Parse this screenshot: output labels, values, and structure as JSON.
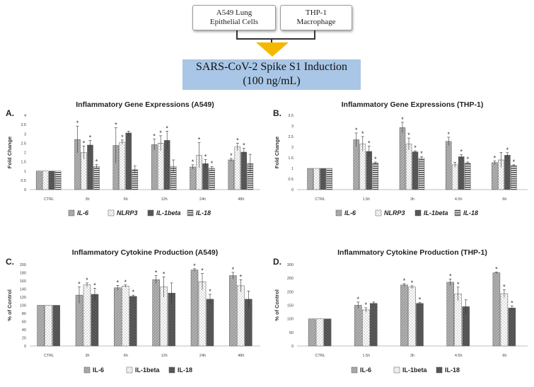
{
  "header": {
    "cell_a549": [
      "A549 Lung",
      "Epithelial Cells"
    ],
    "cell_thp1": [
      "THP-1",
      "Macrophage"
    ],
    "banner_line1": "SARS-CoV-2 Spike S1 Induction",
    "banner_line2": "(100 ng/mL)",
    "arrow_color": "#f5b800"
  },
  "chart_data": [
    {
      "panel": "A.",
      "type": "bar",
      "title": "Inflammatory Gene Expressions (A549)",
      "ylabel": "Fold Change",
      "ylim": [
        0,
        4
      ],
      "yticks": [
        0,
        0.5,
        1,
        1.5,
        2,
        2.5,
        3,
        3.5,
        4
      ],
      "yticklabels": [
        "0",
        "0.5",
        "1",
        "1.5",
        "2",
        "2.5",
        "3",
        "3.5",
        "4"
      ],
      "categories": [
        "CTRL",
        "3h",
        "6h",
        "12h",
        "24h",
        "48h"
      ],
      "legend_italic": true,
      "series": [
        {
          "name": "IL-6",
          "pattern": "gray",
          "values": [
            1,
            2.7,
            2.38,
            2.42,
            1.22,
            1.6
          ],
          "errors": [
            0,
            0.72,
            0.95,
            0.3,
            0.12,
            0.08
          ],
          "significant": [
            false,
            true,
            true,
            true,
            true,
            true
          ]
        },
        {
          "name": "NLRP3",
          "pattern": "dots",
          "values": [
            1,
            2.0,
            2.55,
            2.5,
            1.85,
            2.3
          ],
          "errors": [
            0,
            0.35,
            0.12,
            0.4,
            0.68,
            0.2
          ],
          "significant": [
            false,
            true,
            true,
            true,
            true,
            true
          ]
        },
        {
          "name": "IL-1beta",
          "pattern": "dark",
          "values": [
            1,
            2.4,
            3.05,
            2.65,
            1.4,
            2.02
          ],
          "errors": [
            0,
            0.25,
            0.1,
            0.5,
            0.22,
            0.2
          ],
          "significant": [
            false,
            true,
            false,
            true,
            true,
            true
          ]
        },
        {
          "name": "IL-18",
          "pattern": "hstripe",
          "values": [
            1,
            1.25,
            1.07,
            1.25,
            1.15,
            1.4
          ],
          "errors": [
            0,
            0.1,
            0.2,
            0.35,
            0.1,
            0.5
          ],
          "significant": [
            false,
            true,
            false,
            false,
            true,
            false
          ]
        }
      ]
    },
    {
      "panel": "B.",
      "type": "bar",
      "title": "Inflammatory Gene Expressions (THP-1)",
      "ylabel": "Fold Change",
      "ylim": [
        0,
        3.5
      ],
      "yticks": [
        0,
        0.5,
        1,
        1.5,
        2,
        2.5,
        3,
        3.5
      ],
      "yticklabels": [
        "0",
        "0.5",
        "1",
        "1.5",
        "2",
        "2.5",
        "3",
        "3.5"
      ],
      "categories": [
        "CTRL",
        "1.5h",
        "3h",
        "4.5h",
        "6h"
      ],
      "legend_italic": true,
      "series": [
        {
          "name": "IL-6",
          "pattern": "gray",
          "values": [
            1,
            2.35,
            2.92,
            2.27,
            1.27
          ],
          "errors": [
            0,
            0.32,
            0.25,
            0.2,
            0.08
          ],
          "significant": [
            false,
            true,
            true,
            true,
            true
          ]
        },
        {
          "name": "NLRP3",
          "pattern": "dots",
          "values": [
            1,
            2.15,
            2.15,
            1.17,
            1.4
          ],
          "errors": [
            0,
            0.35,
            0.28,
            0.12,
            0.35
          ],
          "significant": [
            false,
            true,
            true,
            false,
            false
          ]
        },
        {
          "name": "IL-1beta",
          "pattern": "dark",
          "values": [
            1,
            1.8,
            1.78,
            1.55,
            1.62
          ],
          "errors": [
            0,
            0.25,
            0.05,
            0.1,
            0.12
          ],
          "significant": [
            false,
            true,
            true,
            true,
            true
          ]
        },
        {
          "name": "IL-18",
          "pattern": "hstripe",
          "values": [
            1,
            1.25,
            1.48,
            1.25,
            1.13
          ],
          "errors": [
            0,
            0.05,
            0.08,
            0.05,
            0.04
          ],
          "significant": [
            false,
            true,
            true,
            true,
            true
          ]
        }
      ]
    },
    {
      "panel": "C.",
      "type": "bar",
      "title": "Inflammatory Cytokine Production (A549)",
      "ylabel": "% of Control",
      "ylim": [
        0,
        200
      ],
      "yticks": [
        0,
        20,
        40,
        60,
        80,
        100,
        120,
        140,
        160,
        180,
        200
      ],
      "yticklabels": [
        "0",
        "20",
        "40",
        "60",
        "80",
        "100",
        "120",
        "140",
        "160",
        "180",
        "200"
      ],
      "categories": [
        "CTRL",
        "3h",
        "6h",
        "12h",
        "24h",
        "48h"
      ],
      "legend_italic": false,
      "series": [
        {
          "name": "IL-6",
          "pattern": "gray",
          "values": [
            100,
            125,
            143,
            163,
            187,
            173
          ],
          "errors": [
            0,
            20,
            6,
            10,
            3,
            8
          ],
          "significant": [
            false,
            true,
            true,
            true,
            true,
            true
          ]
        },
        {
          "name": "IL-1beta",
          "pattern": "dots",
          "values": [
            100,
            150,
            147,
            145,
            158,
            148
          ],
          "errors": [
            0,
            5,
            3,
            25,
            20,
            15
          ],
          "significant": [
            false,
            true,
            true,
            true,
            true,
            true
          ]
        },
        {
          "name": "IL-18",
          "pattern": "dark",
          "values": [
            100,
            127,
            122,
            130,
            115,
            115
          ],
          "errors": [
            0,
            15,
            3,
            25,
            12,
            20
          ],
          "significant": [
            false,
            true,
            true,
            false,
            true,
            false
          ]
        }
      ]
    },
    {
      "panel": "D.",
      "type": "bar",
      "title": "Inflammatory Cytokine Production (THP-1)",
      "ylabel": "% of Control",
      "ylim": [
        0,
        300
      ],
      "yticks": [
        0,
        50,
        100,
        150,
        200,
        250,
        300
      ],
      "yticklabels": [
        "0",
        "50",
        "100",
        "150",
        "200",
        "250",
        "300"
      ],
      "categories": [
        "CTRL",
        "1.5h",
        "3h",
        "4.5h",
        "6h"
      ],
      "legend_italic": false,
      "series": [
        {
          "name": "IL-6",
          "pattern": "gray",
          "values": [
            100,
            150,
            225,
            235,
            270
          ],
          "errors": [
            0,
            12,
            5,
            12,
            3
          ],
          "significant": [
            false,
            true,
            true,
            true,
            true
          ]
        },
        {
          "name": "IL-1beta",
          "pattern": "dots",
          "values": [
            100,
            133,
            217,
            192,
            193
          ],
          "errors": [
            0,
            8,
            5,
            25,
            15
          ],
          "significant": [
            false,
            true,
            true,
            true,
            true
          ]
        },
        {
          "name": "IL-18",
          "pattern": "dark",
          "values": [
            100,
            157,
            157,
            145,
            140
          ],
          "errors": [
            0,
            5,
            3,
            25,
            8
          ],
          "significant": [
            false,
            false,
            true,
            false,
            true
          ]
        }
      ]
    }
  ]
}
